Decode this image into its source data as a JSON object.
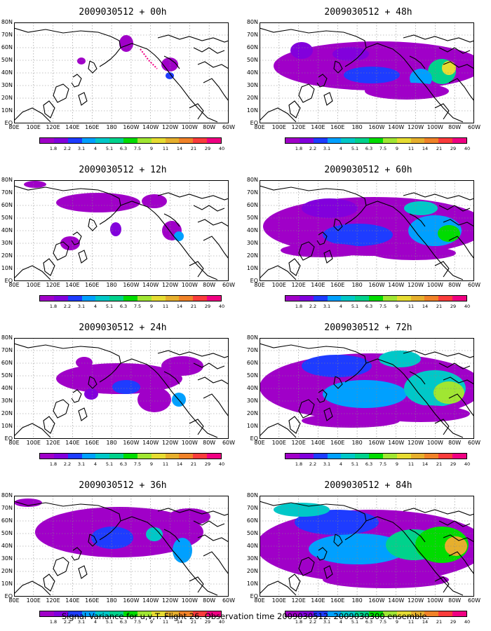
{
  "panels": [
    {
      "id": "p00",
      "title": "2009030512 + 00h",
      "level": 0
    },
    {
      "id": "p48",
      "title": "2009030512 + 48h",
      "level": 4
    },
    {
      "id": "p12",
      "title": "2009030512 + 12h",
      "level": 1
    },
    {
      "id": "p60",
      "title": "2009030512 + 60h",
      "level": 5
    },
    {
      "id": "p24",
      "title": "2009030512 + 24h",
      "level": 2
    },
    {
      "id": "p72",
      "title": "2009030512 + 72h",
      "level": 6
    },
    {
      "id": "p36",
      "title": "2009030512 + 36h",
      "level": 3
    },
    {
      "id": "p84",
      "title": "2009030512 + 84h",
      "level": 7
    }
  ],
  "axis": {
    "lat_labels": [
      "80N",
      "70N",
      "60N",
      "50N",
      "40N",
      "30N",
      "20N",
      "10N",
      "EQ"
    ],
    "lon_labels": [
      "80E",
      "100E",
      "120E",
      "140E",
      "160E",
      "180",
      "160W",
      "140W",
      "120W",
      "100W",
      "80W",
      "60W"
    ]
  },
  "colorbar": {
    "labels": [
      "1.8",
      "2.2",
      "3.1",
      "4",
      "5.1",
      "6.3",
      "7.5",
      "9",
      "11",
      "14",
      "21",
      "29",
      "40"
    ],
    "colors": [
      "#a000c8",
      "#8200dc",
      "#1e3cff",
      "#00a0ff",
      "#00c8c8",
      "#00d28c",
      "#00dc00",
      "#a0e632",
      "#e6dc32",
      "#e6af2d",
      "#f08228",
      "#fa3c3c",
      "#f00082"
    ]
  },
  "caption": "Signal Variance for u,v,T. Flight 26. Observation time 2009030512. 2009030300 ensemble."
}
